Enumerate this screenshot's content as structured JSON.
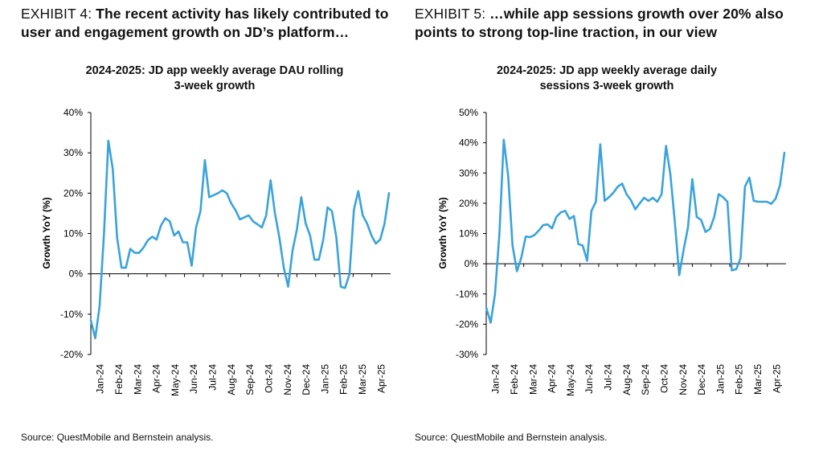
{
  "exhibits": [
    {
      "label": "EXHIBIT 4: ",
      "headline_line1": "The recent activity has likely contributed to",
      "headline_line2": "user and engagement growth on JD’s platform…",
      "source": "Source: QuestMobile and Bernstein analysis."
    },
    {
      "label": "EXHIBIT 5: ",
      "headline_line1": "…while app sessions growth over 20% also",
      "headline_line2": "points to strong top-line traction, in our view",
      "source": "Source: QuestMobile and Bernstein analysis."
    }
  ],
  "chart_data": [
    {
      "type": "line",
      "title_line1": "2024-2025: JD app weekly average DAU rolling",
      "title_line2": "3-week growth",
      "xlabel": "",
      "ylabel": "Growth YoY (%)",
      "ylim": [
        -20,
        40
      ],
      "yticks": [
        -20,
        -10,
        0,
        10,
        20,
        30,
        40
      ],
      "ytick_labels": [
        "-20%",
        "-10%",
        "0%",
        "10%",
        "20%",
        "30%",
        "40%"
      ],
      "x_tick_labels": [
        "Jan-24",
        "Feb-24",
        "Mar-24",
        "Apr-24",
        "May-24",
        "Jun-24",
        "Jul-24",
        "Aug-24",
        "Sep-24",
        "Oct-24",
        "Nov-24",
        "Dec-24",
        "Jan-25",
        "Feb-25",
        "Mar-25",
        "Apr-25"
      ],
      "color": "#3AA3DB",
      "grid": false,
      "series": [
        {
          "values": [
            -11.5,
            -16,
            -8,
            10,
            33,
            26,
            9,
            1.5,
            1.5,
            6.2,
            5.2,
            5.2,
            6.5,
            8.3,
            9.2,
            8.5,
            12,
            13.8,
            13,
            9.5,
            10.5,
            7.8,
            7.8,
            2,
            11.5,
            15.5,
            28.2,
            19,
            19.5,
            20,
            20.7,
            20,
            17.5,
            15.8,
            13.5,
            14,
            14.5,
            13,
            12.3,
            11.5,
            14.5,
            23.2,
            15,
            9,
            1.5,
            -3.2,
            5.8,
            11,
            19,
            12.5,
            9.5,
            3.5,
            3.5,
            8.5,
            16.5,
            15.5,
            9,
            -3.2,
            -3.5,
            0,
            16,
            20.5,
            14.5,
            12.5,
            9.5,
            7.5,
            8.5,
            12.5,
            20
          ]
        }
      ]
    },
    {
      "type": "line",
      "title_line1": "2024-2025: JD app weekly average daily",
      "title_line2": "sessions 3-week growth",
      "xlabel": "",
      "ylabel": "Growth YoY (%)",
      "ylim": [
        -30,
        50
      ],
      "yticks": [
        -30,
        -20,
        -10,
        0,
        10,
        20,
        30,
        40,
        50
      ],
      "ytick_labels": [
        "-30%",
        "-20%",
        "-10%",
        "0%",
        "10%",
        "20%",
        "30%",
        "40%",
        "50%"
      ],
      "x_tick_labels": [
        "Jan-24",
        "Feb-24",
        "Mar-24",
        "Apr-24",
        "May-24",
        "Jun-24",
        "Jul-24",
        "Aug-24",
        "Sep-24",
        "Oct-24",
        "Nov-24",
        "Dec-24",
        "Jan-25",
        "Feb-25",
        "Mar-25",
        "Apr-25"
      ],
      "color": "#3AA3DB",
      "grid": false,
      "series": [
        {
          "values": [
            -14.5,
            -19.5,
            -10,
            10,
            41,
            29,
            6,
            -2.5,
            2,
            9,
            8.8,
            9.5,
            11,
            12.8,
            13,
            11.7,
            15.5,
            17,
            17.5,
            14.8,
            15.8,
            6.5,
            6,
            1,
            17.5,
            20.5,
            39.5,
            20.8,
            22,
            23.5,
            25.5,
            26.5,
            23,
            21,
            18,
            20,
            21.8,
            20.8,
            21.8,
            20.5,
            23,
            39,
            29.5,
            14,
            -3.8,
            4.5,
            12,
            28,
            15.5,
            14.5,
            10.5,
            11.5,
            15.5,
            23,
            22,
            20.5,
            -2.2,
            -1.8,
            1.8,
            25.5,
            28.5,
            20.8,
            20.5,
            20.5,
            20.5,
            19.8,
            21.5,
            26,
            36.7
          ]
        }
      ]
    }
  ]
}
